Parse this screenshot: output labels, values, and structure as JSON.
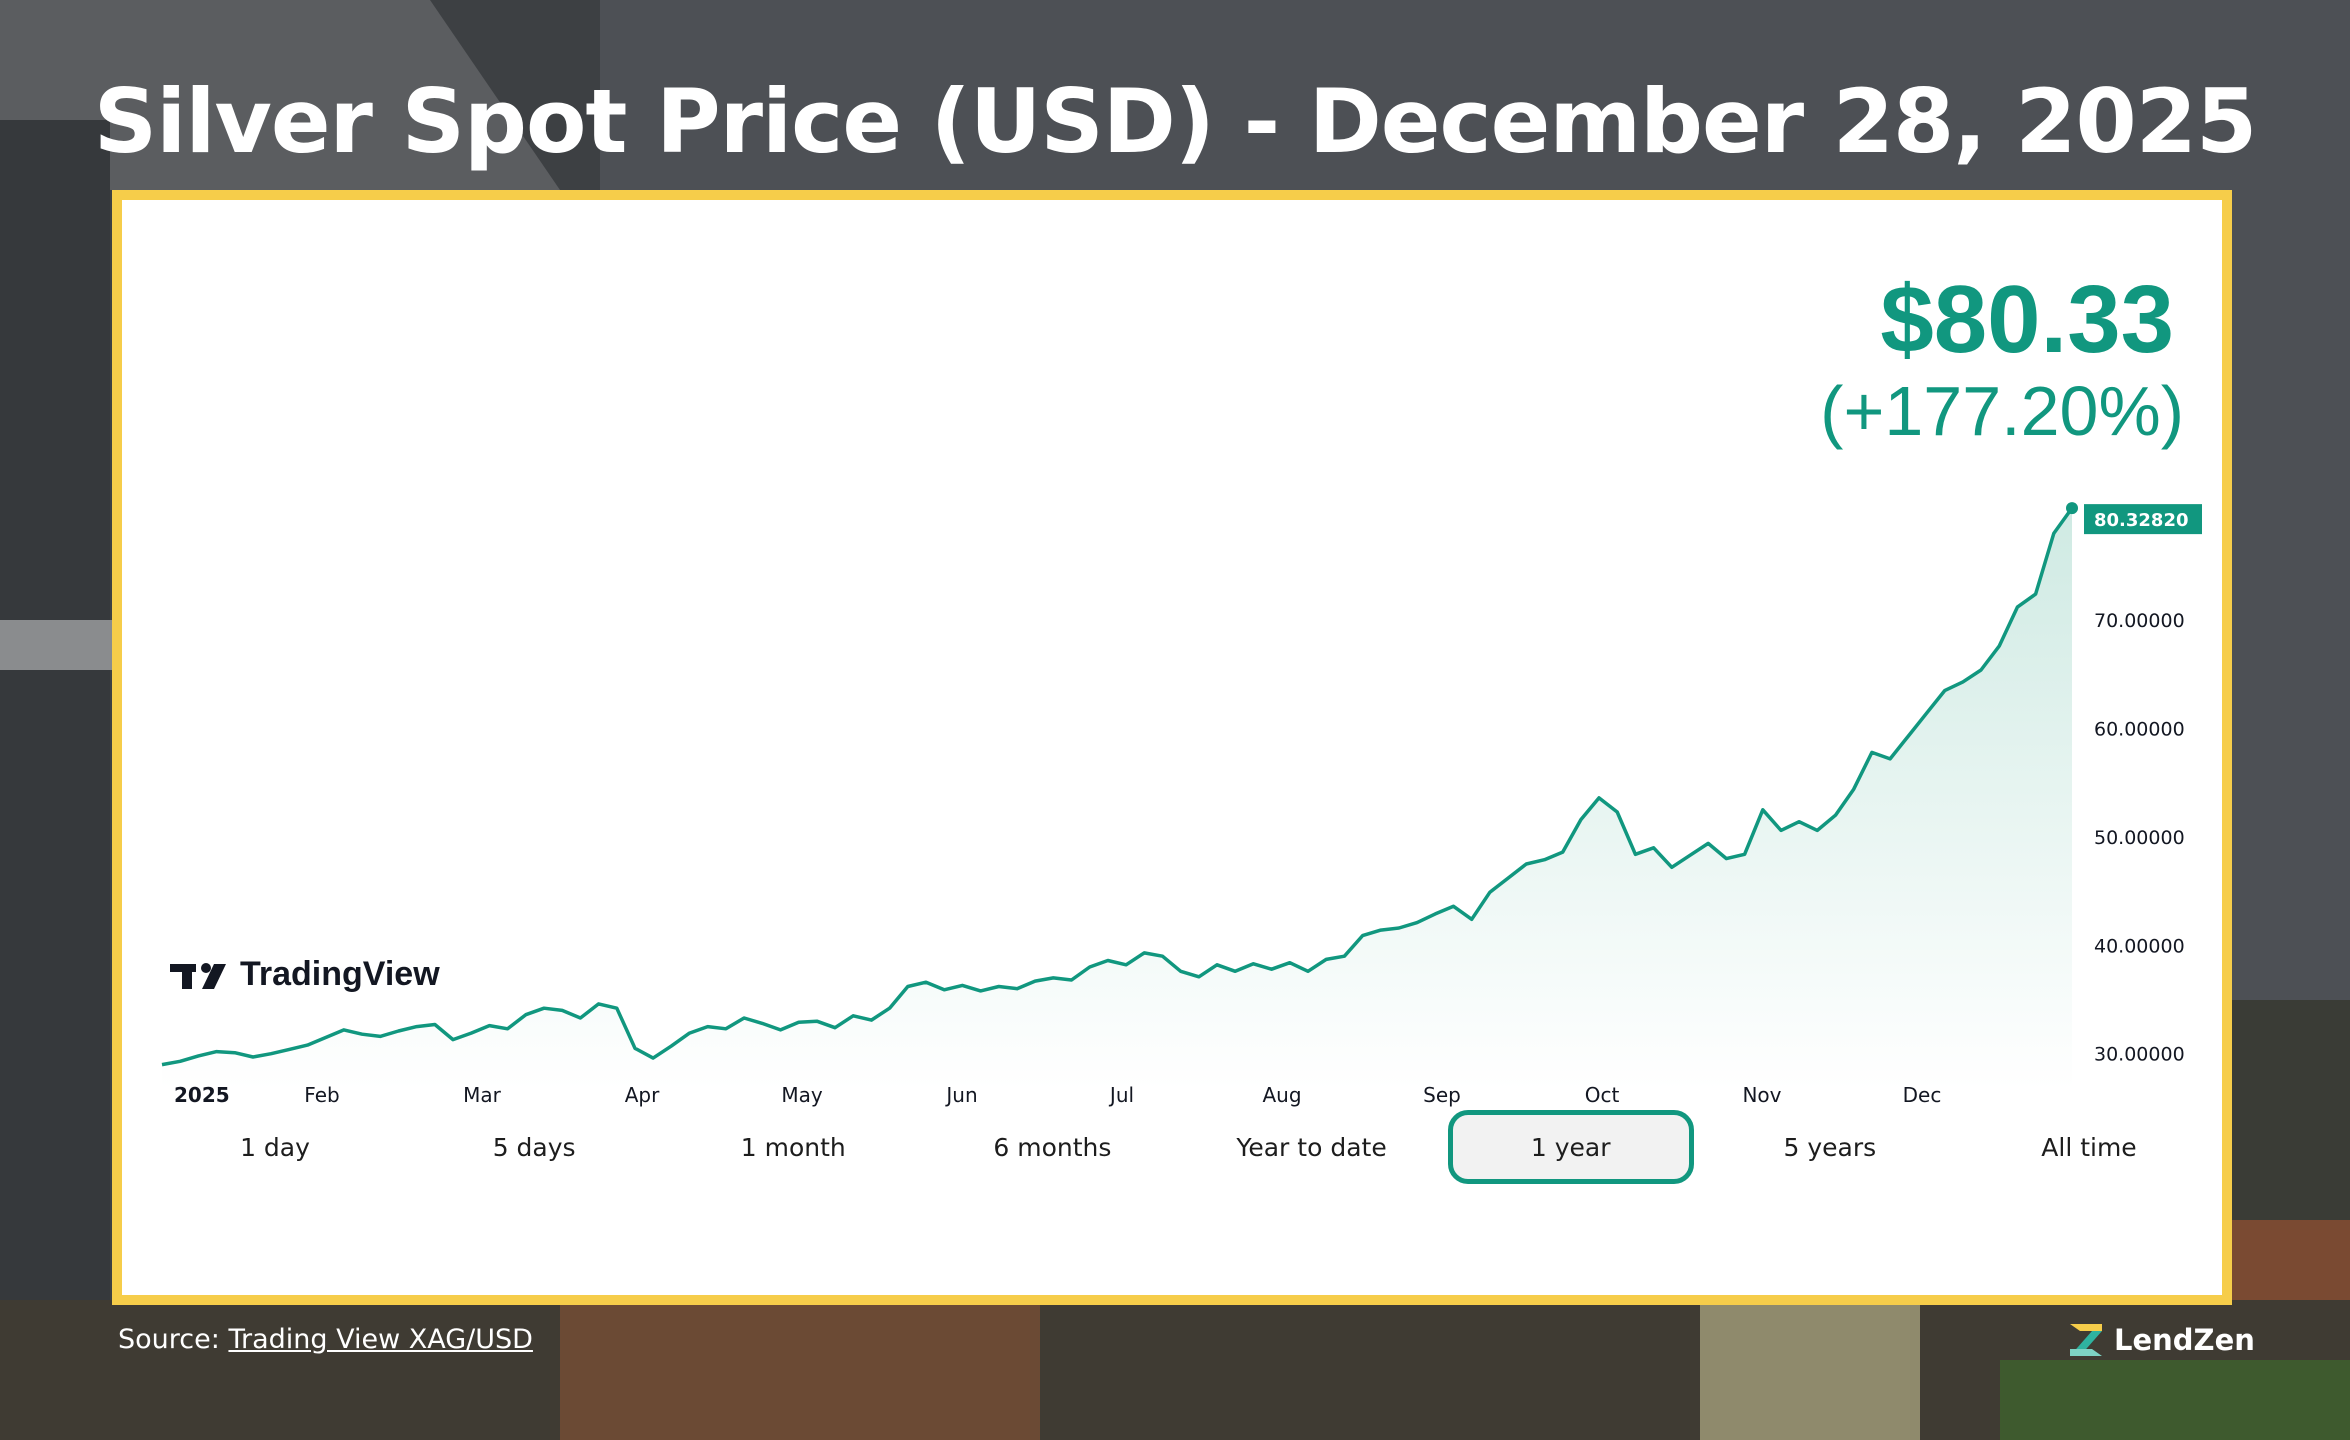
{
  "page": {
    "title": "Silver Spot Price (USD) - December 28, 2025",
    "price": "$80.33",
    "change": "(+177.20%)",
    "source_label": "Source:",
    "source_link": "Trading View XAG/USD",
    "brand": "LendZen",
    "watermark": "TradingView"
  },
  "colors": {
    "accent": "#11977f",
    "frame": "#f6cd4a",
    "area_fill_top": "#cfeae3"
  },
  "ranges": [
    {
      "label": "1 day",
      "active": false
    },
    {
      "label": "5 days",
      "active": false
    },
    {
      "label": "1 month",
      "active": false
    },
    {
      "label": "6 months",
      "active": false
    },
    {
      "label": "Year to date",
      "active": false
    },
    {
      "label": "1 year",
      "active": true
    },
    {
      "label": "5 years",
      "active": false
    },
    {
      "label": "All time",
      "active": false
    }
  ],
  "chart_data": {
    "type": "area",
    "title": "",
    "xlabel": "",
    "ylabel": "",
    "x_tick_labels": [
      "2025",
      "Feb",
      "Mar",
      "Apr",
      "May",
      "Jun",
      "Jul",
      "Aug",
      "Sep",
      "Oct",
      "Nov",
      "Dec"
    ],
    "y_tick_labels": [
      "30.00000",
      "40.00000",
      "50.00000",
      "60.00000",
      "70.00000"
    ],
    "y_ticks": [
      30,
      40,
      50,
      60,
      70
    ],
    "ylim": [
      28.5,
      82
    ],
    "last_value_label": "80.32820",
    "last_value": 80.3282,
    "grid": false,
    "series": [
      {
        "values": [
          29.0,
          29.3,
          29.8,
          30.2,
          30.1,
          29.7,
          30.0,
          30.4,
          30.8,
          31.5,
          32.2,
          31.8,
          31.6,
          32.1,
          32.5,
          32.7,
          31.3,
          31.9,
          32.6,
          32.3,
          33.6,
          34.2,
          34.0,
          33.3,
          34.6,
          34.2,
          30.5,
          29.6,
          30.7,
          31.9,
          32.5,
          32.3,
          33.3,
          32.8,
          32.2,
          32.9,
          33.0,
          32.4,
          33.5,
          33.1,
          34.2,
          36.2,
          36.6,
          35.9,
          36.3,
          35.8,
          36.2,
          36.0,
          36.7,
          37.0,
          36.8,
          38.0,
          38.6,
          38.2,
          39.3,
          39.0,
          37.6,
          37.1,
          38.2,
          37.6,
          38.3,
          37.8,
          38.4,
          37.6,
          38.7,
          39.0,
          40.9,
          41.4,
          41.6,
          42.1,
          42.9,
          43.6,
          42.4,
          44.9,
          46.2,
          47.5,
          47.9,
          48.6,
          51.6,
          53.6,
          52.3,
          48.4,
          49.0,
          47.2,
          48.3,
          49.4,
          48.0,
          48.4,
          52.5,
          50.6,
          51.4,
          50.6,
          52.0,
          54.4,
          57.8,
          57.2,
          59.3,
          61.4,
          63.5,
          64.3,
          65.4,
          67.6,
          71.2,
          72.4,
          78.0,
          80.3282
        ]
      }
    ]
  }
}
